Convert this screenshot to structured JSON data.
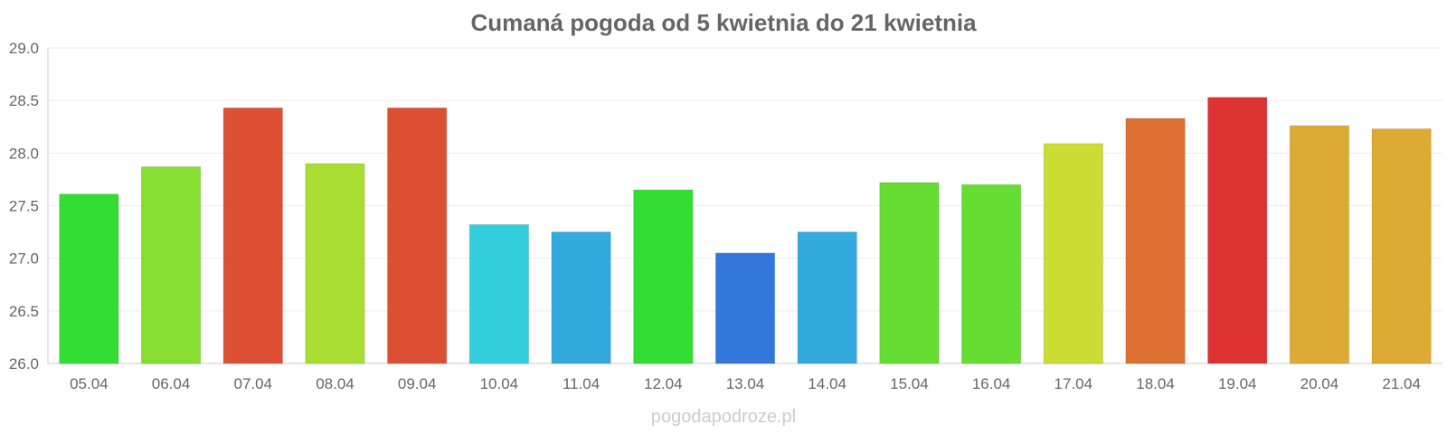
{
  "chart_data": {
    "type": "bar",
    "title": "Cumaná pogoda od 5 kwietnia do 21 kwietnia",
    "xlabel": "",
    "ylabel": "",
    "ylim": [
      26.0,
      29.0
    ],
    "yticks": [
      "26.0",
      "26.5",
      "27.0",
      "27.5",
      "28.0",
      "28.5",
      "29.0"
    ],
    "categories": [
      "05.04",
      "06.04",
      "07.04",
      "08.04",
      "09.04",
      "10.04",
      "11.04",
      "12.04",
      "13.04",
      "14.04",
      "15.04",
      "16.04",
      "17.04",
      "18.04",
      "19.04",
      "20.04",
      "21.04"
    ],
    "values": [
      27.61,
      27.87,
      28.43,
      27.9,
      28.43,
      27.32,
      27.25,
      27.65,
      27.05,
      27.25,
      27.72,
      27.7,
      28.09,
      28.33,
      28.53,
      28.26,
      28.23
    ],
    "colors": [
      "#33dd33",
      "#88dd33",
      "#dd5033",
      "#aadd33",
      "#dd5033",
      "#33cedd",
      "#33aadd",
      "#33dd33",
      "#3377dd",
      "#33aadd",
      "#66dd33",
      "#66dd33",
      "#ccdd33",
      "#dd7033",
      "#dd3333",
      "#ddaa33",
      "#ddaa33"
    ],
    "grid": true,
    "legend": "none"
  },
  "watermark": "pogodapodroze.pl"
}
